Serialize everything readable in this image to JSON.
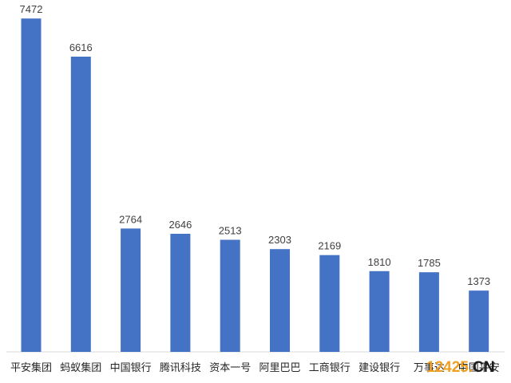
{
  "chart_data": {
    "type": "bar",
    "categories": [
      "平安集团",
      "蚂蚁集团",
      "中国银行",
      "腾讯科技",
      "资本一号",
      "阿里巴巴",
      "工商银行",
      "建设银行",
      "万事达",
      "中国平安"
    ],
    "values": [
      7472,
      6616,
      2764,
      2646,
      2513,
      2303,
      2169,
      1810,
      1785,
      1373
    ],
    "title": "",
    "xlabel": "",
    "ylabel": "",
    "ylim": [
      0,
      7600
    ],
    "grid": false,
    "legend": "none",
    "bar_color": "#4472c4",
    "axis_color": "#d9d9d9"
  },
  "watermark": {
    "number": "12425",
    "dot": ".",
    "suffix": "CN"
  }
}
